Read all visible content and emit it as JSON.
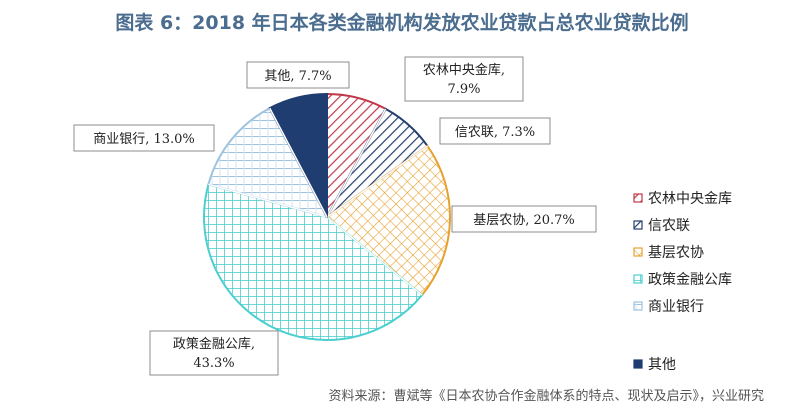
{
  "title": "图表 6：2018 年日本各类金融机构发放农业贷款占总农业贷款比例",
  "source": "资料来源：曹斌等《日本农协合作金融体系的特点、现状及启示》，兴业研究",
  "chart_data": {
    "type": "pie",
    "title": "图表 6：2018 年日本各类金融机构发放农业贷款占总农业贷款比例",
    "slices": [
      {
        "name": "农林中央金库",
        "value": 7.9,
        "label_lines": [
          "农林中央金库,",
          "7.9%"
        ],
        "color": "#c0394b"
      },
      {
        "name": "信农联",
        "value": 7.3,
        "label_lines": [
          "信农联, 7.3%"
        ],
        "color": "#243f6e"
      },
      {
        "name": "基层农协",
        "value": 20.7,
        "label_lines": [
          "基层农协, 20.7%"
        ],
        "color": "#e6a12e"
      },
      {
        "name": "政策金融公库",
        "value": 43.3,
        "label_lines": [
          "政策金融公库,",
          "43.3%"
        ],
        "color": "#4ccfcf"
      },
      {
        "name": "商业银行",
        "value": 13.0,
        "label_lines": [
          "商业银行, 13.0%"
        ],
        "color": "#9ec3df"
      },
      {
        "name": "其他",
        "value": 7.7,
        "label_lines": [
          "其他, 7.7%"
        ],
        "color": "#1f3d70"
      }
    ],
    "legend_position": "right"
  }
}
